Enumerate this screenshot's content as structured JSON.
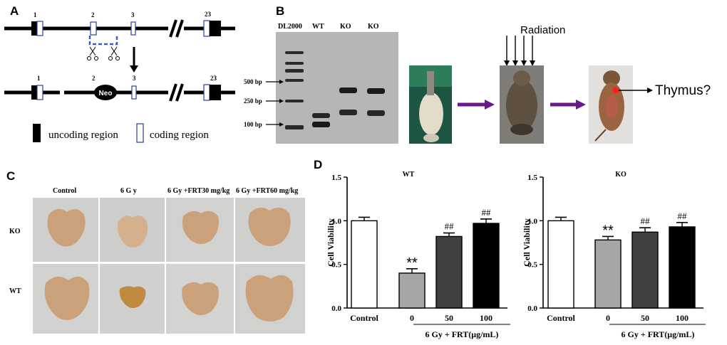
{
  "panels": {
    "a": {
      "label": "A",
      "exons_top": [
        "1",
        "2",
        "3",
        "23"
      ],
      "exons_bottom": [
        "1",
        "2",
        "3",
        "23"
      ],
      "neo": "Neo",
      "legend": {
        "uncoding": "uncoding region",
        "coding": "coding region"
      }
    },
    "b": {
      "label": "B",
      "lanes": [
        "DL2000",
        "WT",
        "KO",
        "KO"
      ],
      "markers": [
        "500 bp",
        "250 bp",
        "100 bp"
      ],
      "radiation": "Radiation",
      "thymus": "Thymus?"
    },
    "c": {
      "label": "C",
      "columns": [
        "Control",
        "6 G y",
        "6 Gy +FRT30  mg/kg",
        "6 Gy +FRT60  mg/kg"
      ],
      "rows": [
        "KO",
        "WT"
      ]
    },
    "d": {
      "label": "D",
      "group_label": "6 Gy + FRT(μg/mL)",
      "categories": [
        "Control",
        "0",
        "50",
        "100"
      ]
    }
  },
  "chart_data": [
    {
      "type": "bar",
      "title": "WT",
      "xlabel": "6 Gy + FRT(μg/mL)",
      "ylabel": "Cell Viability",
      "categories": [
        "Control",
        "0",
        "50",
        "100"
      ],
      "values": [
        1.0,
        0.4,
        0.82,
        0.97
      ],
      "errors": [
        0.04,
        0.05,
        0.04,
        0.05
      ],
      "significance": [
        "",
        "**",
        "##",
        "##"
      ],
      "yticks": [
        "0.0",
        "0.5",
        "1.0",
        "1.5"
      ],
      "ylim": [
        0,
        1.5
      ],
      "colors": [
        "#ffffff",
        "#a6a6a6",
        "#404040",
        "#000000"
      ]
    },
    {
      "type": "bar",
      "title": "KO",
      "xlabel": "6 Gy + FRT(μg/mL)",
      "ylabel": "Cell Viability",
      "categories": [
        "Control",
        "0",
        "50",
        "100"
      ],
      "values": [
        1.0,
        0.78,
        0.87,
        0.93
      ],
      "errors": [
        0.04,
        0.04,
        0.05,
        0.05
      ],
      "significance": [
        "",
        "**",
        "##",
        "##"
      ],
      "yticks": [
        "0.0",
        "0.5",
        "1.0",
        "1.5"
      ],
      "ylim": [
        0,
        1.5
      ],
      "colors": [
        "#ffffff",
        "#a6a6a6",
        "#404040",
        "#000000"
      ]
    }
  ]
}
